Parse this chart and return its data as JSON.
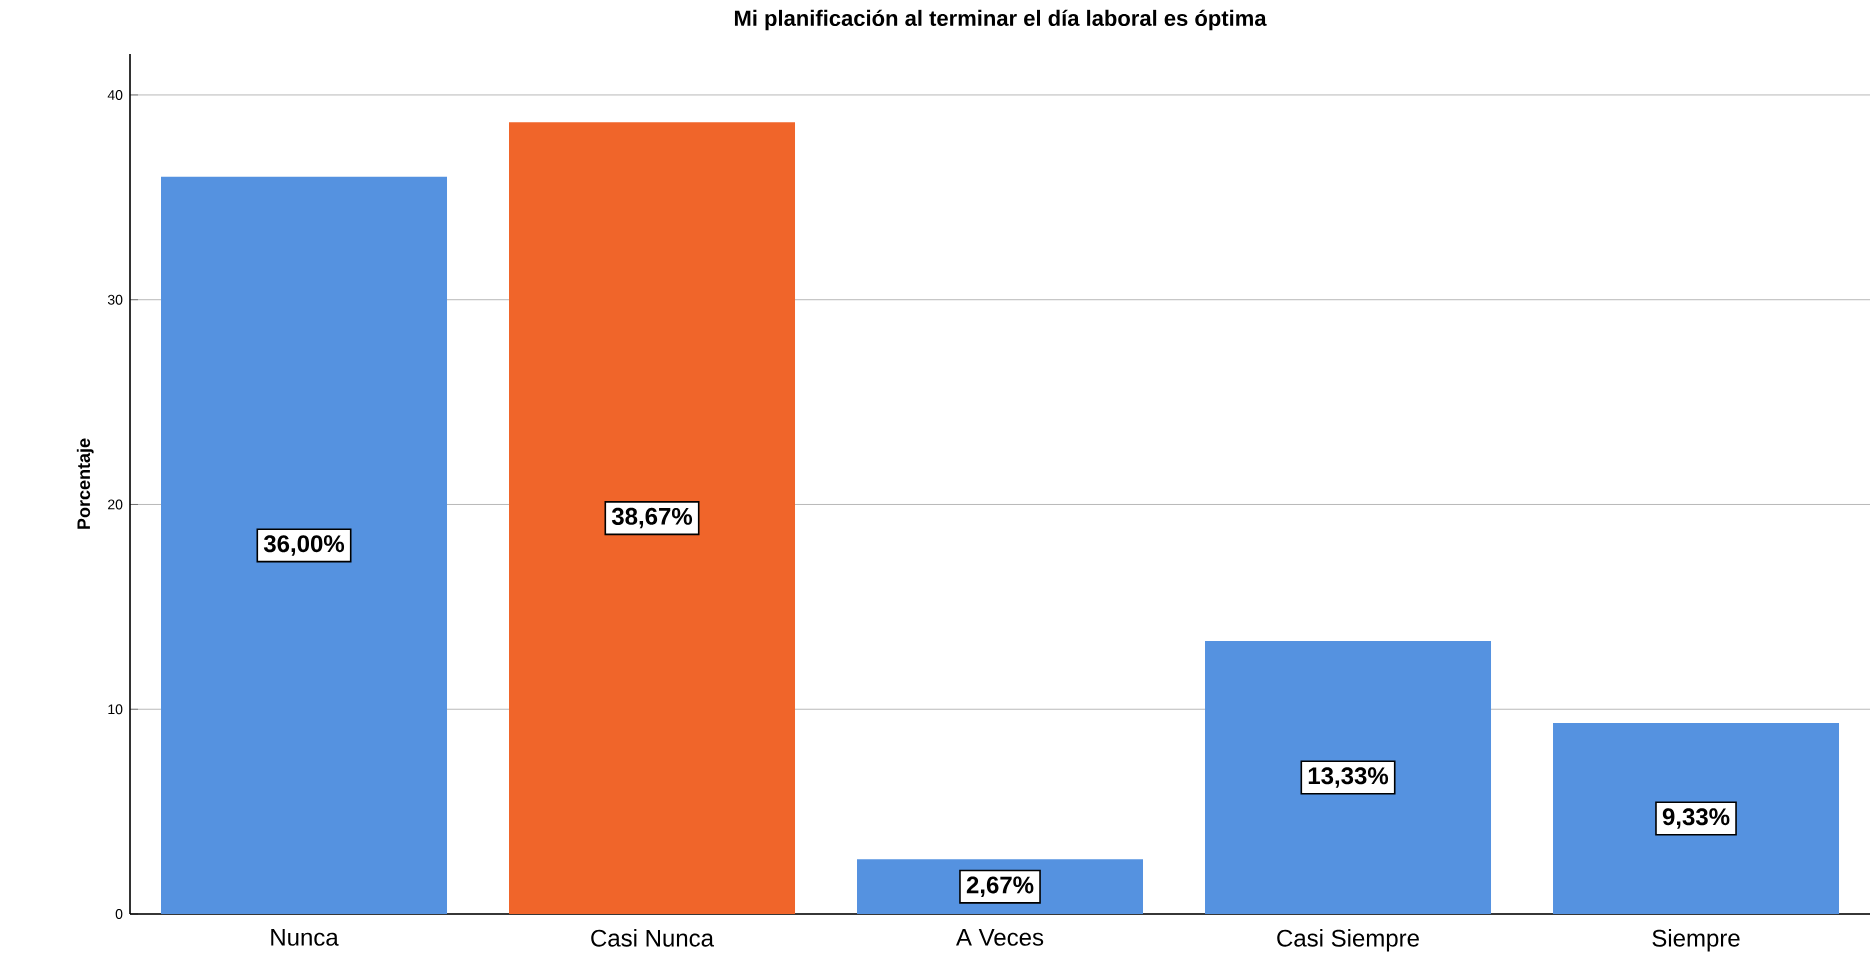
{
  "chart_data": {
    "type": "bar",
    "title": "Mi planificación al terminar el día laboral es óptima",
    "ylabel": "Porcentaje",
    "categories": [
      "Nunca",
      "Casi Nunca",
      "A Veces",
      "Casi Siempre",
      "Siempre"
    ],
    "values": [
      36.0,
      38.67,
      2.67,
      13.33,
      9.33
    ],
    "colors": [
      "#5592e0",
      "#f0652a",
      "#5592e0",
      "#5592e0",
      "#5592e0"
    ],
    "value_labels": [
      "36,00%",
      "38,67%",
      "2,67%",
      "13,33%",
      "9,33%"
    ],
    "ylim": [
      0,
      42
    ],
    "yticks": [
      0,
      10,
      20,
      30,
      40
    ],
    "grid": "y"
  }
}
